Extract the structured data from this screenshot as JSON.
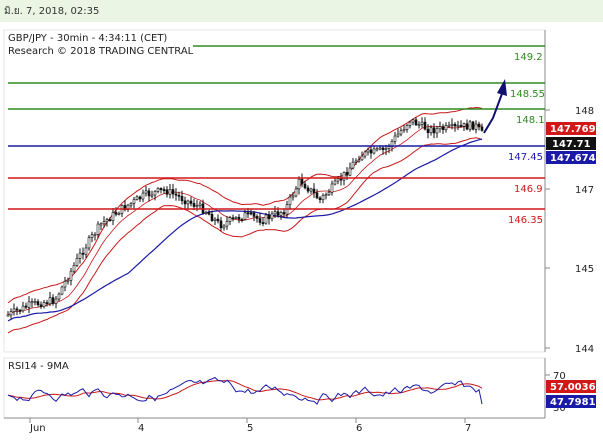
{
  "header": {
    "date_label": "มิ.ย. 7, 2018, 02:35"
  },
  "chart_data": {
    "type": "candlestick",
    "title": "GBP/JPY - 30min - 4:34:11 (CET)",
    "subtitle": "Research © 2018 TRADING CENTRAL",
    "y_ticks": [
      "148",
      "147",
      "145",
      "144"
    ],
    "x_ticks": [
      "Jun",
      "4",
      "5",
      "6",
      "7"
    ],
    "levels": [
      {
        "label": "149.2",
        "color": "#2e8b1e",
        "kind": "resistance"
      },
      {
        "label": "148.55",
        "color": "#2e8b1e",
        "kind": "resistance"
      },
      {
        "label": "148.1",
        "color": "#2e8b1e",
        "kind": "resistance"
      },
      {
        "label": "147.45",
        "color": "#1a1aa8",
        "kind": "pivot"
      },
      {
        "label": "146.9",
        "color": "#d01818",
        "kind": "support"
      },
      {
        "label": "146.35",
        "color": "#d01818",
        "kind": "support"
      }
    ],
    "price_tags": [
      {
        "label": "147.769",
        "color": "#d01818"
      },
      {
        "label": "147.71",
        "color": "#111111"
      },
      {
        "label": "147.674",
        "color": "#1a1aa8"
      }
    ],
    "rsi": {
      "title": "RSI14 - 9MA",
      "ticks": [
        "70",
        "30"
      ],
      "tags": [
        {
          "label": "57.0036",
          "color": "#d01818"
        },
        {
          "label": "47.7981",
          "color": "#1a1aa8"
        }
      ]
    },
    "forecast_arrow": "up"
  }
}
